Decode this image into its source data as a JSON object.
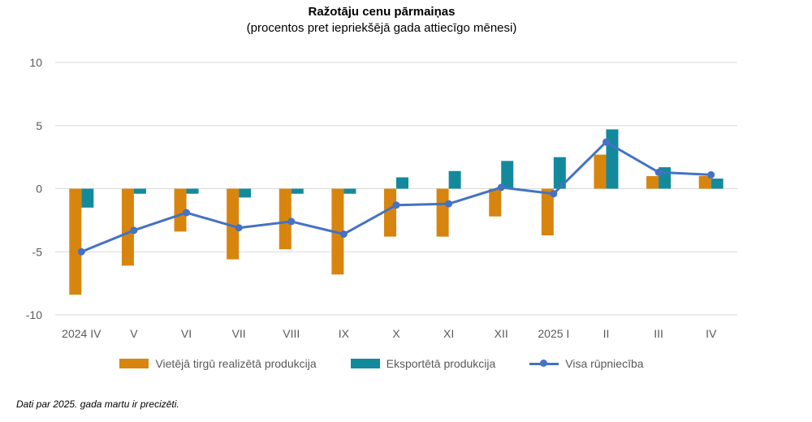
{
  "title": "Ražotāju cenu pārmaiņas",
  "subtitle": "(procentos pret iepriekšējā gada attiecīgo mēnesi)",
  "footnote": "Dati par 2025. gada martu ir precizēti.",
  "colors": {
    "domestic": "#D8850F",
    "export": "#138A9C",
    "total": "#4472C4",
    "grid": "#D9D9D9",
    "axis_text": "#595959"
  },
  "chart_data": {
    "type": "bar",
    "title": "Ražotāju cenu pārmaiņas",
    "subtitle": "(procentos pret iepriekšējā gada attiecīgo mēnesi)",
    "categories": [
      "2024 IV",
      "V",
      "VI",
      "VII",
      "VIII",
      "IX",
      "X",
      "XI",
      "XII",
      "2025 I",
      "II",
      "III",
      "IV"
    ],
    "ylim": [
      -10,
      10
    ],
    "yticks": [
      -10,
      -5,
      0,
      5,
      10
    ],
    "grid": true,
    "legend_position": "bottom",
    "series": [
      {
        "name": "Vietējā tirgū realizētā produkcija",
        "type": "bar",
        "values": [
          -8.4,
          -6.1,
          -3.4,
          -5.6,
          -4.8,
          -6.8,
          -3.8,
          -3.8,
          -2.2,
          -3.7,
          2.7,
          1.0,
          1.0
        ]
      },
      {
        "name": "Eksportētā produkcija",
        "type": "bar",
        "values": [
          -1.5,
          -0.4,
          -0.4,
          -0.7,
          -0.4,
          -0.4,
          0.9,
          1.4,
          2.2,
          2.5,
          4.7,
          1.7,
          0.8
        ]
      },
      {
        "name": "Visa rūpniecība",
        "type": "line",
        "values": [
          -5.0,
          -3.3,
          -1.9,
          -3.1,
          -2.6,
          -3.6,
          -1.3,
          -1.2,
          0.1,
          -0.4,
          3.7,
          1.3,
          1.1
        ]
      }
    ]
  }
}
